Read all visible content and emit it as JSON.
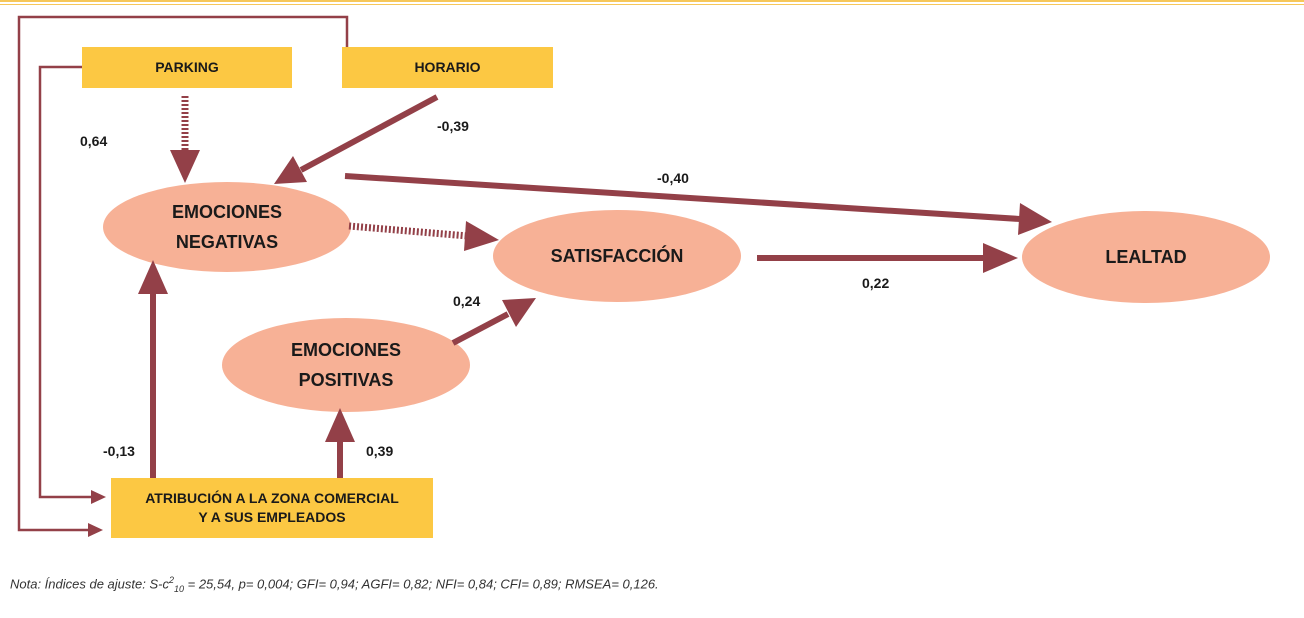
{
  "nodes": {
    "parking": "PARKING",
    "horario": "HORARIO",
    "emociones_negativas_l1": "EMOCIONES",
    "emociones_negativas_l2": "NEGATIVAS",
    "satisfaccion": "SATISFACCIÓN",
    "lealtad": "LEALTAD",
    "emociones_positivas_l1": "EMOCIONES",
    "emociones_positivas_l2": "POSITIVAS",
    "atribucion_l1": "ATRIBUCIÓN A LA ZONA COMERCIAL",
    "atribucion_l2": "Y A SUS EMPLEADOS"
  },
  "coefficients": {
    "parking_zona": "0,64",
    "horario_negativas": "-0,39",
    "negativas_lealtad": "-0,40",
    "satisfaccion_lealtad": "0,22",
    "positivas_satisfaccion": "0,24",
    "zona_negativas": "-0,13",
    "zona_positivas": "0,39"
  },
  "note": {
    "prefix": "Nota: Índices de ajuste: S-c",
    "sup": "2",
    "sub": "10",
    "suffix": " = 25,54, p= 0,004; GFI= 0,94; AGFI= 0,82; NFI= 0,84; CFI= 0,89; RMSEA= 0,126."
  },
  "colors": {
    "box_fill": "#fcc843",
    "ellipse_fill": "#f7b196",
    "arrow": "#934048",
    "top_rule": "#f6c75a"
  }
}
